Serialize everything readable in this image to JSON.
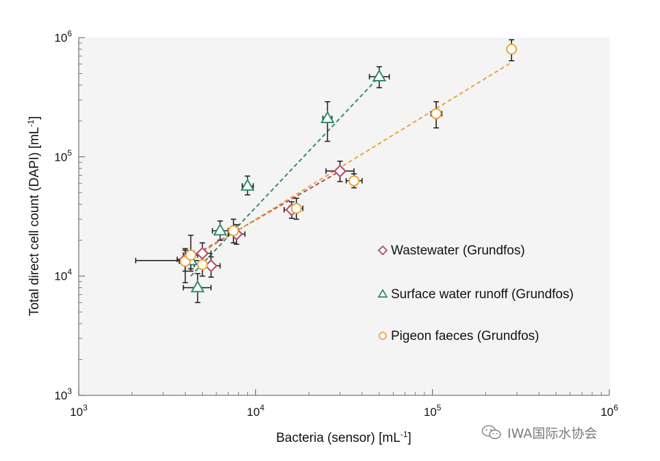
{
  "colors": {
    "wastewater": "#b2465f",
    "surface": "#2f8b6f",
    "pigeon": "#eda33a",
    "axis": "#7a7a7a",
    "errorbar": "#222222",
    "plot_bg": "#f4f4f4"
  },
  "watermark": {
    "text": "IWA国际水协会",
    "icon": "wechat-icon"
  },
  "chart_data": {
    "type": "scatter",
    "xscale": "log",
    "yscale": "log",
    "xlim": [
      1000,
      1000000
    ],
    "ylim": [
      1000,
      1000000
    ],
    "xlabel": {
      "main": "Bacteria (sensor) [mL",
      "sup": "-1",
      "end": "]"
    },
    "ylabel": {
      "main": "Total direct cell count (DAPI) [mL",
      "sup": "-1",
      "end": "]"
    },
    "xticks": [
      {
        "value": 1000,
        "base": "10",
        "exp": "3"
      },
      {
        "value": 10000,
        "base": "10",
        "exp": "4"
      },
      {
        "value": 100000,
        "base": "10",
        "exp": "5"
      },
      {
        "value": 1000000,
        "base": "10",
        "exp": "6"
      }
    ],
    "yticks": [
      {
        "value": 1000,
        "base": "10",
        "exp": "3"
      },
      {
        "value": 10000,
        "base": "10",
        "exp": "4"
      },
      {
        "value": 100000,
        "base": "10",
        "exp": "5"
      },
      {
        "value": 1000000,
        "base": "10",
        "exp": "6"
      }
    ],
    "legend_position": "right",
    "series": [
      {
        "name": "Wastewater (Grundfos)",
        "marker": "diamond",
        "color_key": "wastewater",
        "points": [
          {
            "x": 4000,
            "y": 13800,
            "xerr": [
              3600,
              4400
            ],
            "yerr": [
              11000,
              16500
            ]
          },
          {
            "x": 5000,
            "y": 15500,
            "xerr": [
              4500,
              5600
            ],
            "yerr": [
              12500,
              19000
            ]
          },
          {
            "x": 5600,
            "y": 12200,
            "xerr": [
              5000,
              6300
            ],
            "yerr": [
              9800,
              14500
            ]
          },
          {
            "x": 7800,
            "y": 22500,
            "xerr": [
              7000,
              8700
            ],
            "yerr": [
              18500,
              27000
            ]
          },
          {
            "x": 16000,
            "y": 36000,
            "xerr": [
              14500,
              17700
            ],
            "yerr": [
              30500,
              42000
            ]
          },
          {
            "x": 30000,
            "y": 76000,
            "xerr": [
              25000,
              36000
            ],
            "yerr": [
              62000,
              92000
            ]
          }
        ],
        "trend": [
          [
            4000,
            13500
          ],
          [
            30000,
            76000
          ]
        ]
      },
      {
        "name": "Surface water runoff (Grundfos)",
        "marker": "triangle",
        "color_key": "surface",
        "points": [
          {
            "x": 4700,
            "y": 8000,
            "xerr": [
              3900,
              5600
            ],
            "yerr": [
              6000,
              10500
            ]
          },
          {
            "x": 4300,
            "y": 13500,
            "xerr": [
              2100,
              5000
            ],
            "yerr": [
              11500,
              16000
            ]
          },
          {
            "x": 6300,
            "y": 24000,
            "xerr": [
              5700,
              7000
            ],
            "yerr": [
              20000,
              29000
            ]
          },
          {
            "x": 9000,
            "y": 57000,
            "xerr": [
              8400,
              9700
            ],
            "yerr": [
              48000,
              69000
            ]
          },
          {
            "x": 25500,
            "y": 210000,
            "xerr": [
              24000,
              27000
            ],
            "yerr": [
              135000,
              290000
            ]
          },
          {
            "x": 50000,
            "y": 470000,
            "xerr": [
              44000,
              57000
            ],
            "yerr": [
              380000,
              570000
            ]
          }
        ],
        "trend": [
          [
            4300,
            10000
          ],
          [
            50000,
            470000
          ]
        ]
      },
      {
        "name": "Pigeon faeces (Grundfos)",
        "marker": "circle",
        "color_key": "pigeon",
        "points": [
          {
            "x": 4000,
            "y": 13300,
            "xerr": [
              3700,
              4400
            ],
            "yerr": [
              8800,
              17000
            ]
          },
          {
            "x": 4300,
            "y": 15000,
            "xerr": [
              3900,
              4700
            ],
            "yerr": [
              11000,
              22000
            ]
          },
          {
            "x": 5000,
            "y": 12500,
            "xerr": [
              4500,
              5500
            ],
            "yerr": [
              10000,
              15000
            ]
          },
          {
            "x": 7500,
            "y": 24000,
            "xerr": [
              7000,
              8000
            ],
            "yerr": [
              19000,
              30000
            ]
          },
          {
            "x": 17000,
            "y": 37000,
            "xerr": [
              15500,
              18500
            ],
            "yerr": [
              30000,
              45000
            ]
          },
          {
            "x": 36000,
            "y": 63000,
            "xerr": [
              32500,
              40000
            ],
            "yerr": [
              55000,
              72000
            ]
          },
          {
            "x": 105000,
            "y": 230000,
            "xerr": [
              98000,
              113000
            ],
            "yerr": [
              175000,
              290000
            ]
          },
          {
            "x": 280000,
            "y": 800000,
            "xerr": [
              268000,
              292000
            ],
            "yerr": [
              640000,
              960000
            ]
          }
        ],
        "trend": [
          [
            4000,
            13000
          ],
          [
            280000,
            620000
          ]
        ]
      }
    ]
  }
}
